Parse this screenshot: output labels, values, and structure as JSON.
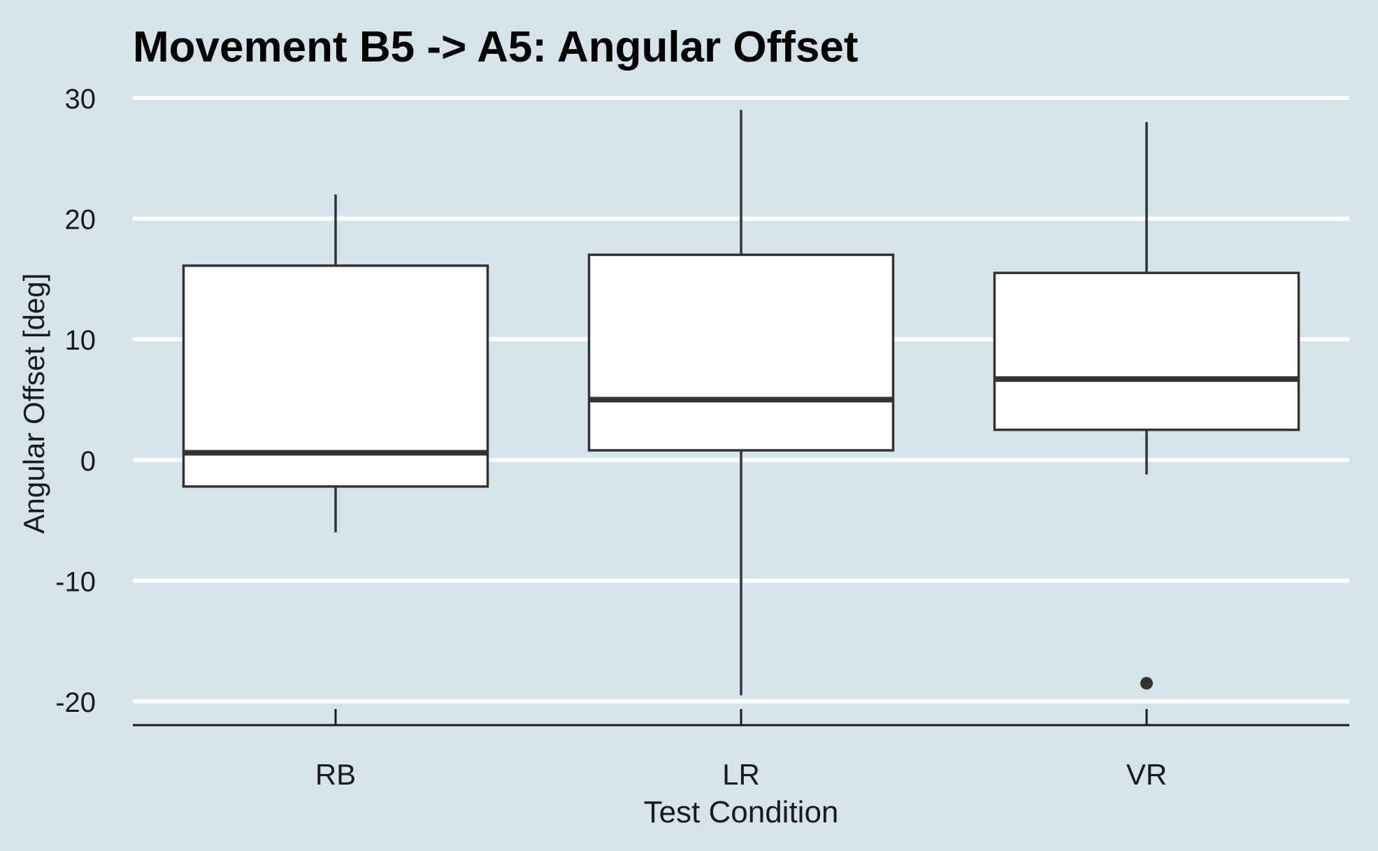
{
  "chart_data": {
    "type": "box",
    "title": "Movement B5 -> A5: Angular Offset",
    "xlabel": "Test Condition",
    "ylabel": "Angular Offset [deg]",
    "ylim": [
      -22,
      31
    ],
    "yticks": [
      30,
      20,
      10,
      0,
      -10,
      -20
    ],
    "ytick_labels": [
      "30",
      "20",
      "10",
      "0",
      "-10",
      "-20"
    ],
    "grid": "horizontal",
    "legend": "none",
    "categories": [
      "RB",
      "LR",
      "VR"
    ],
    "boxes": [
      {
        "category": "RB",
        "whisker_low": -6.0,
        "q1": -2.2,
        "median": 0.6,
        "q3": 16.1,
        "whisker_high": 22.0,
        "outliers": []
      },
      {
        "category": "LR",
        "whisker_low": -19.5,
        "q1": 0.8,
        "median": 5.0,
        "q3": 17.0,
        "whisker_high": 29.0,
        "outliers": []
      },
      {
        "category": "VR",
        "whisker_low": -1.2,
        "q1": 2.5,
        "median": 6.7,
        "q3": 15.5,
        "whisker_high": 28.0,
        "outliers": [
          -18.5
        ]
      }
    ],
    "colors": {
      "background": "#d5e4eb",
      "grid": "#ffffff",
      "box_fill": "#ffffff",
      "box_stroke": "#333333",
      "axis": "#1a1a1a"
    }
  }
}
